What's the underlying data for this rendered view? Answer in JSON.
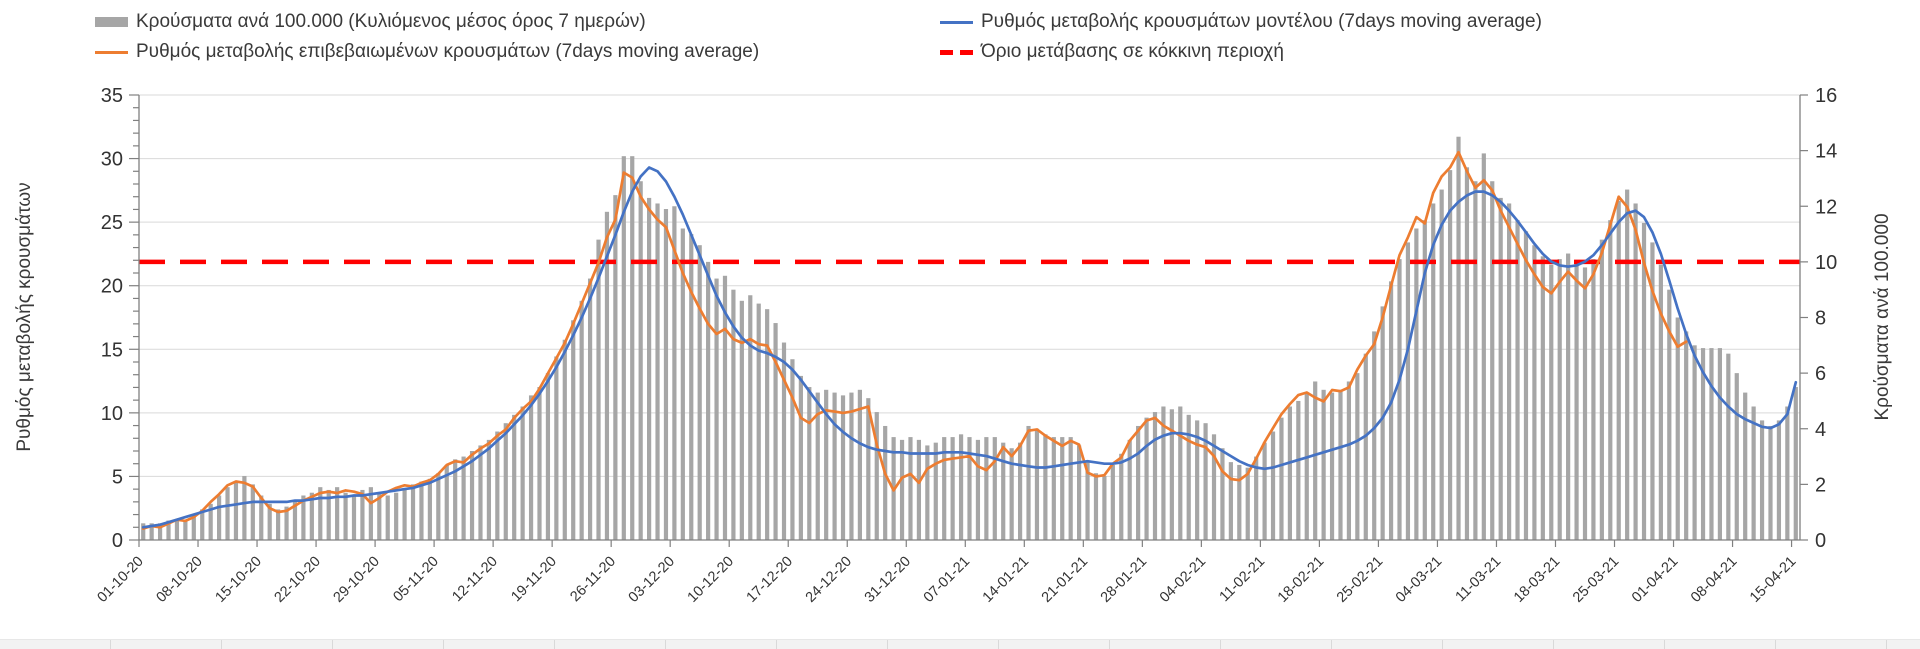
{
  "legend": {
    "bars": "Κρούσματα ανά 100.000 (Κυλιόμενος μέσος όρος 7 ημερών)",
    "confirmed": "Ρυθμός μεταβολής επιβεβαιωμένων κρουσμάτων (7days moving average)",
    "model": "Ρυθμός μεταβολής κρουσμάτων μοντέλου (7days moving average)",
    "threshold": "Όριο μετάβασης σε κόκκινη περιοχή"
  },
  "colors": {
    "bars": "#A6A6A6",
    "confirmed": "#ED7D31",
    "model": "#4472C4",
    "threshold": "#FF0000",
    "gridline": "#D9D9D9",
    "axis": "#808080",
    "text": "#333333"
  },
  "chart_data": {
    "type": "combo",
    "legend_position": "top",
    "grid": "horizontal",
    "n_points": 197,
    "x_tick_labels": [
      "01-10-20",
      "08-10-20",
      "15-10-20",
      "22-10-20",
      "29-10-20",
      "05-11-20",
      "12-11-20",
      "19-11-20",
      "26-11-20",
      "03-12-20",
      "10-12-20",
      "17-12-20",
      "24-12-20",
      "31-12-20",
      "07-01-21",
      "14-01-21",
      "21-01-21",
      "28-01-21",
      "04-02-21",
      "11-02-21",
      "18-02-21",
      "25-02-21",
      "04-03-21",
      "11-03-21",
      "18-03-21",
      "25-03-21",
      "01-04-21",
      "08-04-21",
      "15-04-21"
    ],
    "y_left": {
      "label": "Ρυθμός μεταβολής κρουσμάτων",
      "min": 0,
      "max": 35,
      "step": 5,
      "tick_labels": [
        "0",
        "5",
        "10",
        "15",
        "20",
        "25",
        "30",
        "35"
      ]
    },
    "y_right": {
      "label": "Κρούσματα ανά 100.000",
      "min": 0,
      "max": 16,
      "step": 2,
      "tick_labels": [
        "0",
        "2",
        "4",
        "6",
        "8",
        "10",
        "12",
        "14",
        "16"
      ]
    },
    "threshold": {
      "label": "Όριο μετάβασης σε κόκκινη περιοχή",
      "axis": "right",
      "value": 10,
      "color": "#FF0000"
    },
    "series": [
      {
        "name": "Κρούσματα ανά 100.000 (Κυλιόμενος μέσος όρος 7 ημερών)",
        "type": "bar",
        "axis": "right",
        "color": "#A6A6A6",
        "values": [
          0.6,
          0.6,
          0.6,
          0.7,
          0.7,
          0.7,
          0.9,
          1.1,
          1.3,
          1.6,
          1.9,
          2.1,
          2.3,
          2.0,
          1.6,
          1.3,
          1.1,
          1.2,
          1.4,
          1.6,
          1.7,
          1.9,
          1.8,
          1.9,
          1.7,
          1.6,
          1.8,
          1.9,
          1.7,
          1.6,
          1.7,
          1.8,
          2.0,
          2.1,
          2.2,
          2.4,
          2.7,
          2.9,
          3.0,
          3.2,
          3.4,
          3.6,
          3.9,
          4.2,
          4.5,
          4.8,
          5.2,
          5.5,
          6.0,
          6.6,
          7.2,
          7.9,
          8.6,
          9.4,
          10.8,
          11.8,
          12.4,
          13.8,
          13.8,
          12.9,
          12.3,
          12.1,
          11.9,
          12.0,
          11.2,
          11.0,
          10.6,
          10.0,
          9.4,
          9.5,
          9.0,
          8.6,
          8.8,
          8.5,
          8.3,
          7.8,
          7.1,
          6.5,
          5.9,
          5.5,
          5.3,
          5.4,
          5.3,
          5.2,
          5.3,
          5.4,
          5.1,
          4.6,
          4.1,
          3.7,
          3.6,
          3.7,
          3.6,
          3.4,
          3.5,
          3.7,
          3.7,
          3.8,
          3.7,
          3.6,
          3.7,
          3.7,
          3.5,
          3.3,
          3.5,
          4.1,
          4.0,
          3.8,
          3.7,
          3.7,
          3.7,
          3.4,
          2.8,
          2.4,
          2.3,
          2.7,
          3.1,
          3.6,
          4.1,
          4.4,
          4.6,
          4.8,
          4.7,
          4.8,
          4.5,
          4.3,
          4.2,
          3.8,
          3.3,
          2.8,
          2.7,
          2.6,
          3.0,
          3.5,
          3.9,
          4.4,
          4.8,
          5.0,
          5.3,
          5.7,
          5.4,
          5.3,
          5.4,
          5.7,
          6.0,
          6.7,
          7.5,
          8.4,
          9.3,
          10.1,
          10.7,
          11.2,
          11.5,
          12.1,
          12.6,
          13.3,
          14.5,
          13.4,
          12.9,
          13.9,
          12.9,
          12.3,
          12.1,
          11.5,
          11.1,
          10.6,
          10.2,
          9.9,
          10.1,
          10.3,
          10.0,
          9.8,
          10.1,
          10.8,
          11.5,
          12.2,
          12.6,
          12.1,
          11.4,
          10.7,
          9.9,
          9.0,
          8.0,
          7.5,
          7.0,
          6.9,
          6.9,
          6.9,
          6.7,
          6.0,
          5.3,
          4.8,
          4.3,
          4.1,
          4.3,
          4.8,
          5.5
        ]
      },
      {
        "name": "Ρυθμός μεταβολής επιβεβαιωμένων κρουσμάτων (7days moving average)",
        "type": "line",
        "axis": "left",
        "color": "#ED7D31",
        "values": [
          0.9,
          1.1,
          1.0,
          1.3,
          1.6,
          1.5,
          1.8,
          2.3,
          3.0,
          3.6,
          4.3,
          4.6,
          4.5,
          4.2,
          3.3,
          2.5,
          2.2,
          2.3,
          2.7,
          3.1,
          3.4,
          3.7,
          3.8,
          3.7,
          3.9,
          3.8,
          3.6,
          2.9,
          3.3,
          3.8,
          4.1,
          4.3,
          4.2,
          4.5,
          4.7,
          5.2,
          5.9,
          6.2,
          6.1,
          6.7,
          7.2,
          7.6,
          8.2,
          8.7,
          9.6,
          10.3,
          10.9,
          11.9,
          13.1,
          14.3,
          15.5,
          17.0,
          18.6,
          20.2,
          21.8,
          23.8,
          25.2,
          28.9,
          28.5,
          27.0,
          26.0,
          25.2,
          24.6,
          22.8,
          21.0,
          19.5,
          18.2,
          17.0,
          16.2,
          16.6,
          15.8,
          15.5,
          15.8,
          15.4,
          15.3,
          14.0,
          12.6,
          11.2,
          9.6,
          9.2,
          9.9,
          10.2,
          10.1,
          10.0,
          10.1,
          10.3,
          10.5,
          7.5,
          5.2,
          3.9,
          4.9,
          5.2,
          4.5,
          5.6,
          6.0,
          6.3,
          6.4,
          6.5,
          6.6,
          5.8,
          5.5,
          6.2,
          7.3,
          6.6,
          7.4,
          8.6,
          8.7,
          8.2,
          7.8,
          7.4,
          7.8,
          7.5,
          5.3,
          5.0,
          5.1,
          6.0,
          6.5,
          7.8,
          8.6,
          9.4,
          9.6,
          9.0,
          8.6,
          8.2,
          7.8,
          7.5,
          7.3,
          6.6,
          5.4,
          4.8,
          4.7,
          5.2,
          6.4,
          7.7,
          8.8,
          9.9,
          10.7,
          11.4,
          11.6,
          11.2,
          10.9,
          11.8,
          11.7,
          12.0,
          13.4,
          14.5,
          15.4,
          17.5,
          20.0,
          22.4,
          23.8,
          25.4,
          24.9,
          27.3,
          28.6,
          29.3,
          30.5,
          29.0,
          27.7,
          28.3,
          27.5,
          25.9,
          24.6,
          23.3,
          22.0,
          20.9,
          19.9,
          19.4,
          20.3,
          21.1,
          20.4,
          19.8,
          20.9,
          22.6,
          24.8,
          27.0,
          26.2,
          24.4,
          21.8,
          19.6,
          17.8,
          16.4,
          15.2,
          15.6,
          null,
          null,
          null,
          null,
          null,
          null,
          null,
          null,
          null,
          null,
          null,
          null,
          null
        ]
      },
      {
        "name": "Ρυθμός μεταβολής κρουσμάτων μοντέλου (7days moving average)",
        "type": "line",
        "axis": "left",
        "color": "#4472C4",
        "values": [
          1.0,
          1.1,
          1.2,
          1.4,
          1.6,
          1.8,
          2.0,
          2.2,
          2.4,
          2.6,
          2.7,
          2.8,
          2.9,
          3.0,
          3.0,
          3.0,
          3.0,
          3.0,
          3.1,
          3.1,
          3.2,
          3.3,
          3.3,
          3.4,
          3.4,
          3.5,
          3.5,
          3.6,
          3.7,
          3.8,
          3.9,
          4.0,
          4.1,
          4.3,
          4.5,
          4.8,
          5.1,
          5.4,
          5.8,
          6.2,
          6.7,
          7.2,
          7.8,
          8.4,
          9.1,
          9.8,
          10.6,
          11.5,
          12.5,
          13.6,
          14.8,
          16.1,
          17.5,
          19.0,
          20.6,
          22.3,
          24.0,
          25.8,
          27.4,
          28.6,
          29.3,
          29.0,
          28.2,
          27.0,
          25.6,
          24.0,
          22.4,
          20.8,
          19.2,
          17.9,
          16.8,
          15.9,
          15.3,
          14.9,
          14.7,
          14.4,
          14.0,
          13.4,
          12.6,
          11.7,
          10.8,
          9.9,
          9.1,
          8.5,
          8.0,
          7.6,
          7.3,
          7.1,
          7.0,
          6.9,
          6.9,
          6.8,
          6.8,
          6.8,
          6.8,
          6.9,
          6.9,
          6.9,
          6.8,
          6.7,
          6.6,
          6.4,
          6.2,
          6.0,
          5.9,
          5.8,
          5.7,
          5.7,
          5.8,
          5.9,
          6.0,
          6.1,
          6.2,
          6.1,
          6.0,
          6.0,
          6.1,
          6.4,
          6.8,
          7.4,
          7.9,
          8.2,
          8.4,
          8.4,
          8.3,
          8.1,
          7.8,
          7.4,
          7.0,
          6.6,
          6.2,
          5.9,
          5.7,
          5.6,
          5.7,
          5.9,
          6.1,
          6.3,
          6.5,
          6.7,
          6.9,
          7.1,
          7.3,
          7.5,
          7.8,
          8.2,
          8.8,
          9.6,
          10.8,
          12.6,
          15.0,
          18.0,
          21.0,
          23.2,
          24.8,
          25.9,
          26.6,
          27.1,
          27.4,
          27.4,
          27.1,
          26.6,
          25.9,
          25.1,
          24.2,
          23.3,
          22.5,
          21.9,
          21.6,
          21.5,
          21.6,
          21.9,
          22.4,
          23.2,
          24.1,
          25.0,
          25.7,
          25.9,
          25.4,
          24.2,
          22.5,
          20.4,
          18.2,
          16.2,
          14.5,
          13.2,
          12.1,
          11.2,
          10.5,
          9.9,
          9.5,
          9.2,
          8.9,
          8.8,
          9.1,
          9.9,
          12.4
        ]
      }
    ]
  }
}
